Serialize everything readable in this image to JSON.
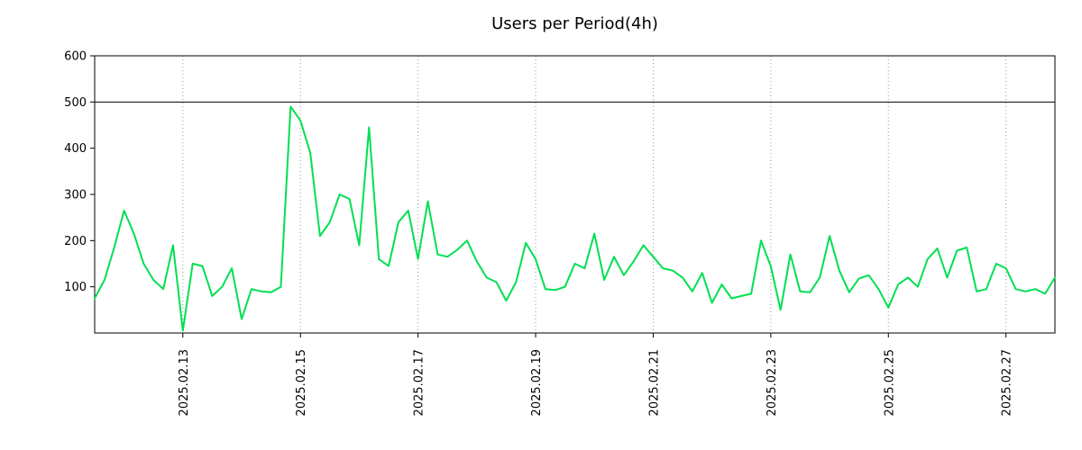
{
  "page": {
    "background_color": "#ffffff",
    "text_color": "#000000"
  },
  "chart_data": {
    "type": "line",
    "title": "Users per Period(4h)",
    "xlabel": "",
    "ylabel": "",
    "ylim": [
      0,
      600
    ],
    "y_ticks": [
      100,
      200,
      300,
      400,
      500,
      600
    ],
    "x_tick_labels": [
      "2025.02.13",
      "2025.02.15",
      "2025.02.17",
      "2025.02.19",
      "2025.02.21",
      "2025.02.23",
      "2025.02.25",
      "2025.02.27"
    ],
    "x_tick_indices": [
      9,
      21,
      33,
      45,
      57,
      69,
      81,
      93
    ],
    "grid": "vertical-dotted",
    "legend_position": "none",
    "reference_line_y": 500,
    "line_color": "#00df52",
    "grid_color": "#999999",
    "axis_color": "#000000",
    "series": [
      {
        "name": "users",
        "color": "#00df52",
        "values": [
          75,
          115,
          185,
          265,
          215,
          150,
          115,
          95,
          190,
          5,
          150,
          145,
          80,
          100,
          140,
          30,
          95,
          90,
          88,
          100,
          490,
          460,
          390,
          210,
          240,
          300,
          290,
          190,
          445,
          160,
          145,
          240,
          265,
          160,
          285,
          170,
          165,
          180,
          200,
          155,
          120,
          110,
          70,
          110,
          195,
          160,
          95,
          93,
          100,
          150,
          140,
          215,
          115,
          165,
          125,
          155,
          190,
          165,
          140,
          135,
          120,
          90,
          130,
          65,
          105,
          75,
          80,
          85,
          200,
          145,
          50,
          170,
          90,
          88,
          120,
          210,
          135,
          88,
          118,
          125,
          95,
          55,
          105,
          120,
          100,
          160,
          183,
          120,
          178,
          185,
          90,
          95,
          150,
          140,
          95,
          90,
          95,
          85,
          120
        ]
      }
    ]
  }
}
